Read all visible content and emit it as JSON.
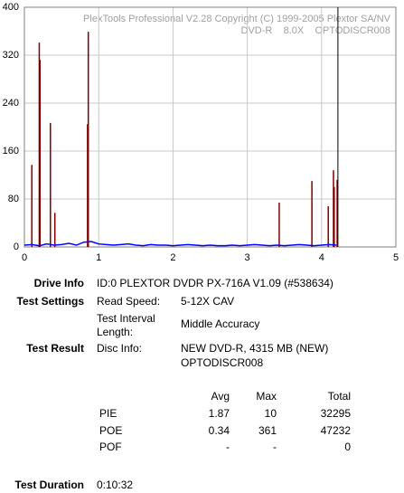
{
  "chart_data": {
    "type": "line",
    "title": "PlexTools Professional V2.28 Copyright (C) 1999-2005 Plextor SA/NV",
    "subtitle": "DVD-R    8.0X    OPTODISCR008",
    "xlim": [
      0,
      5
    ],
    "xticks": [
      0,
      1,
      2,
      3,
      4,
      5
    ],
    "ylim": [
      0,
      400
    ],
    "yticks": [
      0,
      80,
      160,
      240,
      320,
      400
    ],
    "grid": true,
    "disc_end": 4.22,
    "series": [
      {
        "style": "spikes",
        "color": "#800000",
        "x": [
          0.1,
          0.2,
          0.21,
          0.35,
          0.41,
          0.85,
          0.86,
          3.43,
          3.87,
          4.09,
          4.16,
          4.17,
          4.21
        ],
        "values": [
          137,
          341,
          312,
          207,
          57,
          205,
          359,
          74,
          110,
          68,
          128,
          100,
          112
        ]
      },
      {
        "style": "line",
        "color": "#0000ff",
        "x": [
          0,
          0.1,
          0.2,
          0.3,
          0.4,
          0.5,
          0.6,
          0.7,
          0.8,
          0.9,
          1,
          1.1,
          1.2,
          1.3,
          1.4,
          1.5,
          1.6,
          1.7,
          1.8,
          1.9,
          2,
          2.1,
          2.2,
          2.3,
          2.4,
          2.5,
          2.6,
          2.7,
          2.8,
          2.9,
          3,
          3.1,
          3.2,
          3.3,
          3.4,
          3.5,
          3.6,
          3.7,
          3.8,
          3.9,
          4,
          4.1,
          4.2
        ],
        "values": [
          3,
          4,
          2,
          5,
          3,
          4,
          6,
          3,
          8,
          9,
          5,
          4,
          3,
          4,
          5,
          3,
          2,
          4,
          3,
          3,
          2,
          3,
          4,
          3,
          2,
          3,
          2,
          2,
          3,
          2,
          3,
          4,
          3,
          2,
          3,
          2,
          3,
          4,
          3,
          2,
          3,
          4,
          3
        ]
      }
    ]
  },
  "report": {
    "drive_info": {
      "label": "Drive Info",
      "value": "ID:0 PLEXTOR DVDR PX-716A V1.09 (#538634)"
    },
    "test_settings": {
      "label": "Test Settings",
      "read_speed_label": "Read Speed:",
      "read_speed": "5-12X CAV",
      "interval_label_1": "Test Interval",
      "interval_label_2": "Length:",
      "interval": "Middle Accuracy"
    },
    "test_result": {
      "label": "Test Result",
      "disc_info_label": "Disc Info:",
      "disc_info_1": "NEW DVD-R, 4315 MB (NEW)",
      "disc_info_2": "OPTODISCR008"
    },
    "table": {
      "header": [
        "Avg",
        "Max",
        "Total"
      ],
      "rows": [
        [
          "PIE",
          "1.87",
          "10",
          "32295"
        ],
        [
          "POE",
          "0.34",
          "361",
          "47232"
        ],
        [
          "POF",
          "-",
          "-",
          "0"
        ]
      ]
    },
    "duration": {
      "label": "Test Duration",
      "value": "0:10:32"
    }
  }
}
